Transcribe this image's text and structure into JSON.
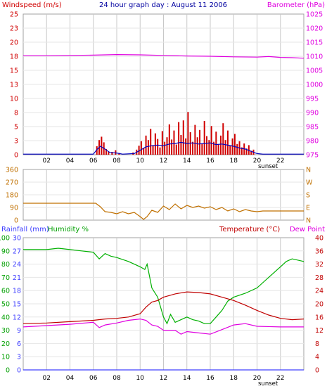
{
  "title": "24 hour graph day : August 11 2006",
  "sunset_label": "sunset",
  "colors": {
    "wind": "#d00000",
    "wind_avg": "#0000c0",
    "barometer": "#e000e0",
    "direction": "#c07000",
    "rain": "#4040ff",
    "humidity": "#00b000",
    "temperature": "#c00000",
    "dewpoint": "#e000e0",
    "grid": "#c8c8c8",
    "frame": "#a0a0a0"
  },
  "x_ticks": [
    "02",
    "04",
    "06",
    "08",
    "10",
    "12",
    "14",
    "16",
    "18",
    "20",
    "22"
  ],
  "chart_data": [
    {
      "type": "bar",
      "panel": "wind-barometer",
      "left_axis": {
        "label": "Windspeed (m/s)",
        "range": [
          0,
          25
        ],
        "ticks": [
          "0",
          "3",
          "5",
          "8",
          "10",
          "13",
          "15",
          "18",
          "20",
          "23",
          "25"
        ]
      },
      "right_axis": {
        "label": "Barometer (hPa)",
        "range": [
          975,
          1025
        ],
        "ticks": [
          "975",
          "980",
          "985",
          "990",
          "995",
          "1000",
          "1005",
          "1010",
          "1015",
          "1020",
          "1025"
        ]
      },
      "x_range_hours": [
        0,
        24
      ],
      "series": [
        {
          "kind": "bar",
          "axis": "left",
          "points": [
            [
              6.3,
              1.5
            ],
            [
              6.5,
              2.6
            ],
            [
              6.7,
              3.2
            ],
            [
              6.9,
              2.2
            ],
            [
              7.1,
              1.0
            ],
            [
              7.3,
              0.6
            ],
            [
              7.6,
              0.5
            ],
            [
              7.9,
              0.8
            ],
            [
              8.2,
              0.3
            ],
            [
              9.4,
              0.4
            ],
            [
              9.7,
              0.9
            ],
            [
              9.9,
              1.6
            ],
            [
              10.1,
              2.4
            ],
            [
              10.3,
              1.2
            ],
            [
              10.5,
              3.4
            ],
            [
              10.7,
              2.6
            ],
            [
              10.9,
              4.6
            ],
            [
              11.1,
              1.7
            ],
            [
              11.3,
              3.8
            ],
            [
              11.5,
              2.8
            ],
            [
              11.7,
              1.3
            ],
            [
              11.9,
              4.2
            ],
            [
              12.1,
              2.3
            ],
            [
              12.3,
              3.1
            ],
            [
              12.5,
              5.4
            ],
            [
              12.7,
              2.7
            ],
            [
              12.9,
              4.3
            ],
            [
              13.1,
              1.8
            ],
            [
              13.3,
              5.8
            ],
            [
              13.5,
              3.5
            ],
            [
              13.7,
              6.1
            ],
            [
              13.9,
              2.9
            ],
            [
              14.1,
              7.6
            ],
            [
              14.3,
              4.0
            ],
            [
              14.5,
              2.3
            ],
            [
              14.7,
              5.3
            ],
            [
              14.9,
              3.1
            ],
            [
              15.1,
              4.4
            ],
            [
              15.3,
              2.0
            ],
            [
              15.5,
              6.0
            ],
            [
              15.7,
              3.3
            ],
            [
              15.9,
              2.6
            ],
            [
              16.1,
              5.1
            ],
            [
              16.3,
              2.3
            ],
            [
              16.5,
              4.1
            ],
            [
              16.7,
              1.9
            ],
            [
              16.9,
              3.4
            ],
            [
              17.1,
              5.6
            ],
            [
              17.3,
              2.6
            ],
            [
              17.5,
              4.3
            ],
            [
              17.7,
              1.6
            ],
            [
              17.9,
              2.9
            ],
            [
              18.1,
              3.7
            ],
            [
              18.3,
              1.9
            ],
            [
              18.5,
              2.4
            ],
            [
              18.7,
              1.3
            ],
            [
              18.9,
              2.0
            ],
            [
              19.1,
              1.1
            ],
            [
              19.3,
              1.7
            ],
            [
              19.5,
              0.7
            ],
            [
              19.7,
              0.9
            ]
          ]
        },
        {
          "kind": "line",
          "axis": "left",
          "points": [
            [
              0,
              0.1
            ],
            [
              6.0,
              0.1
            ],
            [
              6.3,
              0.9
            ],
            [
              6.6,
              1.5
            ],
            [
              7.0,
              1.0
            ],
            [
              7.4,
              0.4
            ],
            [
              8.0,
              0.3
            ],
            [
              8.5,
              0.1
            ],
            [
              9.5,
              0.2
            ],
            [
              10.0,
              0.8
            ],
            [
              10.5,
              1.4
            ],
            [
              11.0,
              1.6
            ],
            [
              11.5,
              1.7
            ],
            [
              12.0,
              1.6
            ],
            [
              12.5,
              1.9
            ],
            [
              13.0,
              2.0
            ],
            [
              13.5,
              2.2
            ],
            [
              14.0,
              2.0
            ],
            [
              14.5,
              2.1
            ],
            [
              15.0,
              1.9
            ],
            [
              15.5,
              2.0
            ],
            [
              16.0,
              2.1
            ],
            [
              16.5,
              1.8
            ],
            [
              17.0,
              1.9
            ],
            [
              17.5,
              1.7
            ],
            [
              18.0,
              1.5
            ],
            [
              18.5,
              1.2
            ],
            [
              19.0,
              1.0
            ],
            [
              19.5,
              0.6
            ],
            [
              20.0,
              0.2
            ],
            [
              20.5,
              0.1
            ],
            [
              24,
              0.1
            ]
          ]
        },
        {
          "kind": "line",
          "axis": "right",
          "points": [
            [
              0,
              1010.2
            ],
            [
              2,
              1010.2
            ],
            [
              4,
              1010.3
            ],
            [
              6,
              1010.4
            ],
            [
              8,
              1010.6
            ],
            [
              10,
              1010.5
            ],
            [
              12,
              1010.3
            ],
            [
              14,
              1010.1
            ],
            [
              16,
              1010.0
            ],
            [
              18,
              1009.8
            ],
            [
              20,
              1009.7
            ],
            [
              21,
              1009.9
            ],
            [
              22,
              1009.6
            ],
            [
              23,
              1009.5
            ],
            [
              24,
              1009.3
            ]
          ]
        }
      ]
    },
    {
      "type": "line",
      "panel": "wind-direction",
      "left_axis": {
        "range": [
          0,
          360
        ],
        "ticks": [
          "0",
          "90",
          "180",
          "270",
          "360"
        ]
      },
      "right_axis": {
        "ticks": [
          "N",
          "E",
          "S",
          "W",
          "N"
        ]
      },
      "x_range_hours": [
        0,
        24
      ],
      "series": [
        {
          "points": [
            [
              0,
              120
            ],
            [
              6.2,
              120
            ],
            [
              6.6,
              95
            ],
            [
              7.0,
              60
            ],
            [
              7.5,
              55
            ],
            [
              8.0,
              45
            ],
            [
              8.5,
              60
            ],
            [
              9.0,
              45
            ],
            [
              9.5,
              55
            ],
            [
              10.0,
              25
            ],
            [
              10.3,
              5
            ],
            [
              10.6,
              25
            ],
            [
              11.0,
              70
            ],
            [
              11.5,
              55
            ],
            [
              12.0,
              100
            ],
            [
              12.5,
              75
            ],
            [
              13.0,
              115
            ],
            [
              13.5,
              80
            ],
            [
              14.0,
              105
            ],
            [
              14.5,
              90
            ],
            [
              15.0,
              100
            ],
            [
              15.5,
              85
            ],
            [
              16.0,
              95
            ],
            [
              16.5,
              75
            ],
            [
              17.0,
              90
            ],
            [
              17.5,
              65
            ],
            [
              18.0,
              80
            ],
            [
              18.5,
              60
            ],
            [
              19.0,
              75
            ],
            [
              19.5,
              65
            ],
            [
              20.0,
              60
            ],
            [
              20.5,
              65
            ],
            [
              24,
              65
            ]
          ]
        }
      ]
    },
    {
      "type": "line",
      "panel": "rain-humidity-temperature",
      "rain_axis": {
        "label": "Rainfall (mm)",
        "range": [
          0,
          30
        ],
        "ticks": [
          "0",
          "3",
          "6",
          "9",
          "12",
          "15",
          "18",
          "21",
          "24",
          "27",
          "30"
        ]
      },
      "humidity_axis": {
        "label": "Humidity %",
        "range": [
          0,
          100
        ],
        "ticks": [
          "0",
          "10",
          "20",
          "30",
          "40",
          "50",
          "60",
          "70",
          "80",
          "90",
          "100"
        ]
      },
      "temperature_axis": {
        "label": "Temperature (°C)",
        "range": [
          0,
          40
        ],
        "ticks": [
          "0",
          "4",
          "8",
          "12",
          "16",
          "20",
          "24",
          "28",
          "32",
          "36",
          "40"
        ]
      },
      "dewpoint_label": "Dew Point",
      "x_range_hours": [
        0,
        24
      ],
      "series": [
        {
          "name": "Humidity %",
          "axis": "humidity",
          "points": [
            [
              0,
              91
            ],
            [
              2,
              91
            ],
            [
              3,
              92
            ],
            [
              4,
              91
            ],
            [
              5,
              90
            ],
            [
              6,
              89
            ],
            [
              6.5,
              84
            ],
            [
              7,
              88
            ],
            [
              7.5,
              86
            ],
            [
              8,
              85
            ],
            [
              9,
              82
            ],
            [
              9.5,
              80
            ],
            [
              10,
              78
            ],
            [
              10.4,
              76
            ],
            [
              10.6,
              80
            ],
            [
              11,
              62
            ],
            [
              11.5,
              55
            ],
            [
              12,
              40
            ],
            [
              12.3,
              35
            ],
            [
              12.6,
              42
            ],
            [
              13,
              36
            ],
            [
              13.5,
              38
            ],
            [
              14,
              40
            ],
            [
              14.5,
              38
            ],
            [
              15,
              37
            ],
            [
              15.5,
              35
            ],
            [
              16,
              35
            ],
            [
              16.5,
              40
            ],
            [
              17,
              45
            ],
            [
              17.5,
              52
            ],
            [
              18,
              55
            ],
            [
              19,
              58
            ],
            [
              20,
              62
            ],
            [
              21,
              70
            ],
            [
              22,
              78
            ],
            [
              22.5,
              82
            ],
            [
              23,
              84
            ],
            [
              24,
              82
            ]
          ]
        },
        {
          "name": "Temperature (°C)",
          "axis": "temperature",
          "points": [
            [
              0,
              14.0
            ],
            [
              2,
              14.2
            ],
            [
              4,
              14.6
            ],
            [
              6,
              15.0
            ],
            [
              7,
              15.4
            ],
            [
              8,
              15.6
            ],
            [
              9,
              16.0
            ],
            [
              10,
              17.0
            ],
            [
              10.5,
              19.0
            ],
            [
              11,
              20.5
            ],
            [
              11.5,
              21.0
            ],
            [
              12,
              22.0
            ],
            [
              13,
              23.0
            ],
            [
              14,
              23.6
            ],
            [
              15,
              23.4
            ],
            [
              16,
              23.0
            ],
            [
              17,
              22.0
            ],
            [
              18,
              21.0
            ],
            [
              19,
              19.6
            ],
            [
              20,
              18.0
            ],
            [
              21,
              16.6
            ],
            [
              22,
              15.6
            ],
            [
              23,
              15.2
            ],
            [
              24,
              15.4
            ]
          ]
        },
        {
          "name": "Dew Point",
          "axis": "temperature",
          "points": [
            [
              0,
              13.0
            ],
            [
              2,
              13.4
            ],
            [
              4,
              13.8
            ],
            [
              6,
              14.4
            ],
            [
              6.5,
              12.8
            ],
            [
              7,
              13.6
            ],
            [
              8,
              14.2
            ],
            [
              9,
              15.0
            ],
            [
              10,
              15.4
            ],
            [
              10.5,
              15.0
            ],
            [
              11,
              13.6
            ],
            [
              11.5,
              13.2
            ],
            [
              12,
              12.0
            ],
            [
              13,
              12.0
            ],
            [
              13.5,
              10.8
            ],
            [
              14,
              11.6
            ],
            [
              15,
              11.2
            ],
            [
              16,
              10.8
            ],
            [
              17,
              12.2
            ],
            [
              18,
              13.6
            ],
            [
              19,
              14.0
            ],
            [
              20,
              13.2
            ],
            [
              22,
              13.0
            ],
            [
              24,
              13.0
            ]
          ]
        },
        {
          "name": "Rainfall (mm)",
          "axis": "rain",
          "points": [
            [
              0,
              0
            ],
            [
              24,
              0
            ]
          ]
        }
      ]
    }
  ]
}
